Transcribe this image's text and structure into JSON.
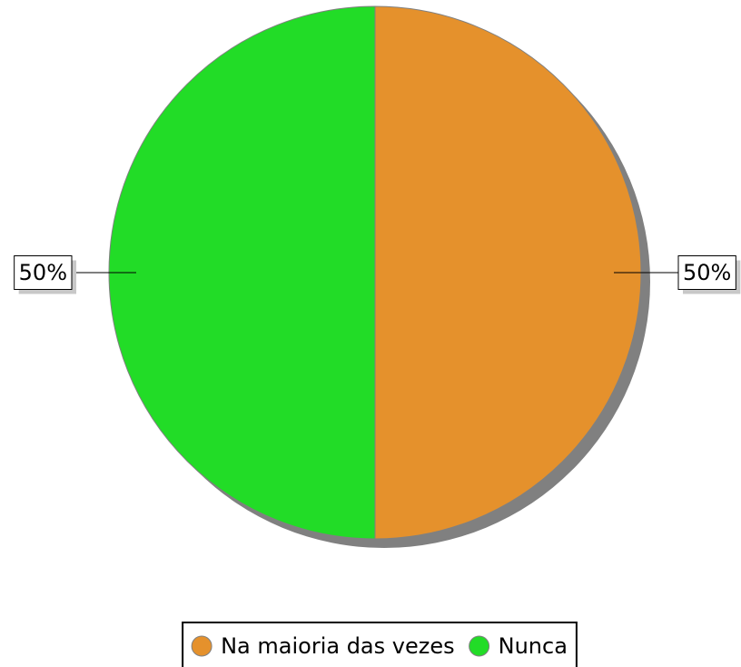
{
  "chart_data": {
    "type": "pie",
    "categories": [
      "Na maioria das vezes",
      "Nunca"
    ],
    "values": [
      50,
      50
    ],
    "value_labels": [
      "50%",
      "50%"
    ],
    "colors": [
      "#e5912c",
      "#22dc27"
    ],
    "legend": "bottom"
  }
}
